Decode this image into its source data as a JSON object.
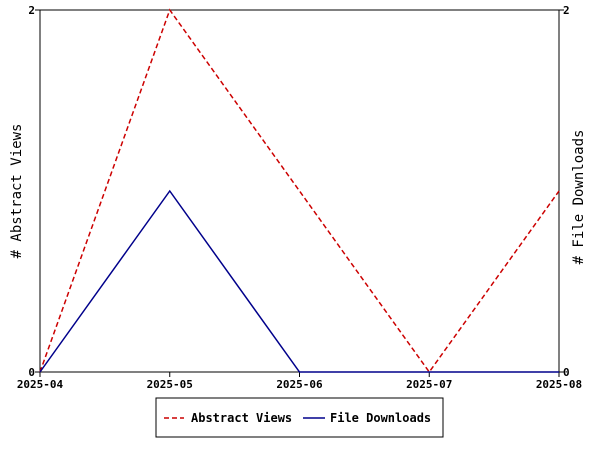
{
  "chart_data": {
    "type": "line",
    "title": "",
    "x": [
      "2025-04",
      "2025-05",
      "2025-06",
      "2025-07",
      "2025-08"
    ],
    "ylabel_left": "# Abstract Views",
    "ylabel_right": "# File Downloads",
    "ylim_left": [
      0,
      2
    ],
    "ylim_right": [
      0,
      2
    ],
    "yticks_left": [
      "0",
      "2"
    ],
    "yticks_right": [
      "0",
      "2"
    ],
    "grid": false,
    "legend_position": "bottom-center",
    "series": [
      {
        "name": "Abstract Views",
        "axis": "left",
        "values": [
          0,
          2,
          1,
          0,
          1
        ],
        "color": "#cc0000",
        "style": "dashed"
      },
      {
        "name": "File Downloads",
        "axis": "right",
        "values": [
          0,
          1,
          0,
          0,
          0
        ],
        "color": "#00008b",
        "style": "solid"
      }
    ]
  }
}
